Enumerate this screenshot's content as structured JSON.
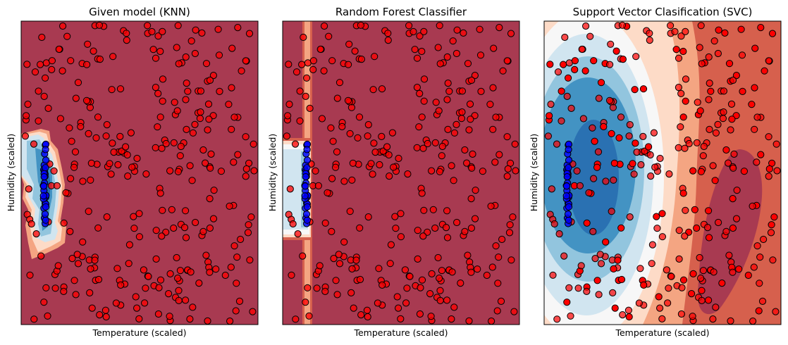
{
  "chart_data": [
    {
      "type": "scatter",
      "title": "Given model (KNN)",
      "xlabel": "Temperature (scaled)",
      "ylabel": "Humidity (scaled)",
      "xticks": "none",
      "yticks": "none",
      "grid": false,
      "legend": "none",
      "background": "decision-boundary contour (RdBu colormap)",
      "series": [
        {
          "values": "≈300 points spread uniformly over the plot area",
          "color": "#ff0000"
        },
        {
          "values": "≈30 points in a narrow vertical band near the left edge",
          "color": "#0000ff"
        }
      ]
    },
    {
      "type": "scatter",
      "title": "Random Forest Classifier",
      "xlabel": "Temperature (scaled)",
      "ylabel": "Humidity (scaled)",
      "xticks": "none",
      "yticks": "none",
      "grid": false,
      "legend": "none",
      "background": "decision-boundary contour (RdBu colormap)",
      "series": [
        {
          "values": "≈300 points spread uniformly over the plot area",
          "color": "#ff0000"
        },
        {
          "values": "≈30 points in a narrow vertical band near the left edge",
          "color": "#0000ff"
        }
      ]
    },
    {
      "type": "scatter",
      "title": "Support Vector Clasification (SVC)",
      "xlabel": "Temperature (scaled)",
      "ylabel": "Humidity (scaled)",
      "xticks": "none",
      "yticks": "none",
      "grid": false,
      "legend": "none",
      "background": "decision-boundary contour (RdBu colormap)",
      "series": [
        {
          "values": "≈300 points spread uniformly over the plot area",
          "color": "#ff0000"
        },
        {
          "values": "≈30 points in a narrow vertical band near the left edge",
          "color": "#0000ff"
        }
      ]
    }
  ],
  "colors": {
    "dark_red": "#a83a51",
    "red": "#d6604d",
    "light_red": "#f4a582",
    "pale_red": "#fddbc7",
    "white": "#f7f7f7",
    "pale_blue": "#d1e5f0",
    "light_blue": "#92c5de",
    "blue": "#4393c3",
    "dark_blue": "#2166ac",
    "point_red": "#ff0000",
    "point_blue": "#0000ff"
  }
}
